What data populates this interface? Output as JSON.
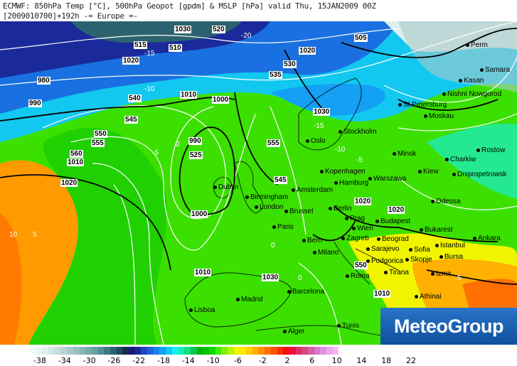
{
  "header": {
    "line1": "ECMWF: 850hPa Temp [°C], 500hPa Geopot [gpdm] & MSLP [hPa] valid Thu, 15JAN2009 00Z",
    "line2": "[2009010700]+192h -= Europe =-"
  },
  "logo": "MeteoGroup",
  "colorbar": {
    "unit": "°C",
    "ticks": [
      "-38",
      "-34",
      "-30",
      "-26",
      "-22",
      "-18",
      "-14",
      "-10",
      "-6",
      "-2",
      "2",
      "6",
      "10",
      "14",
      "18",
      "22"
    ],
    "colors": [
      "#f4fafa",
      "#eaf4f4",
      "#e0eeee",
      "#d4e6e6",
      "#c6dede",
      "#b8d4d4",
      "#a8caca",
      "#98c0c0",
      "#88b4b4",
      "#76aaaa",
      "#64a0a0",
      "#4e8e94",
      "#3c7a84",
      "#2c6270",
      "#1e4a5c",
      "#142e50",
      "#141c78",
      "#1a2a9a",
      "#1e46c0",
      "#1e64dc",
      "#1a82f0",
      "#14a0f4",
      "#10c4f4",
      "#14eef0",
      "#12f0b0",
      "#10e080",
      "#08c84c",
      "#00b400",
      "#00c000",
      "#10d800",
      "#40ec00",
      "#80f000",
      "#b8f400",
      "#f0f400",
      "#ffe800",
      "#ffcc00",
      "#ffb000",
      "#ff9000",
      "#ff7000",
      "#ff5000",
      "#f83000",
      "#f01010",
      "#e81040",
      "#e02c60",
      "#d84880",
      "#d060a8",
      "#d878c8",
      "#e090e0",
      "#eca8ec",
      "#f6b8f2"
    ],
    "first_value": -40
  },
  "cities": [
    "Oslo",
    "Stockholm",
    "St.Petersburg",
    "Moskau",
    "Perm",
    "Kasan",
    "Nishni Nowgorod",
    "Samara",
    "Minsk",
    "Kiew",
    "Warszawa",
    "Kopenhagen",
    "Hamburg",
    "Berlin",
    "Amsterdam",
    "Birmingham",
    "London",
    "Brussel",
    "Dublin",
    "Paris",
    "Bern",
    "Milano",
    "Wien",
    "Budapest",
    "Beograd",
    "Zagreb",
    "Sarajevo",
    "Bukarest",
    "Sofia",
    "Istanbul",
    "Ankara",
    "Bursa",
    "Izmir",
    "Athinai",
    "Roma",
    "Barcelona",
    "Madrid",
    "Lisboa",
    "Alger",
    "Tunis",
    "Charkiw",
    "Rostow",
    "Dnipropetrowsk",
    "Odessa",
    "Podgorica",
    "Skopje",
    "Tirana",
    "Prag"
  ],
  "contour_labels": [
    "1030",
    "1020",
    "1000",
    "990",
    "1010",
    "980",
    "520",
    "530",
    "535",
    "540",
    "545",
    "550",
    "555",
    "560",
    "525",
    "515",
    "510",
    "505",
    "1020",
    "1030",
    "1010",
    "1000",
    "990",
    "1020",
    "1010",
    "1030",
    "1020",
    "1020",
    "1010",
    "550",
    "555",
    "545",
    "-20",
    "-15",
    "-10",
    "-5",
    "0",
    "5",
    "10",
    "-15",
    "-10",
    "-5",
    "0",
    "0",
    "5"
  ]
}
